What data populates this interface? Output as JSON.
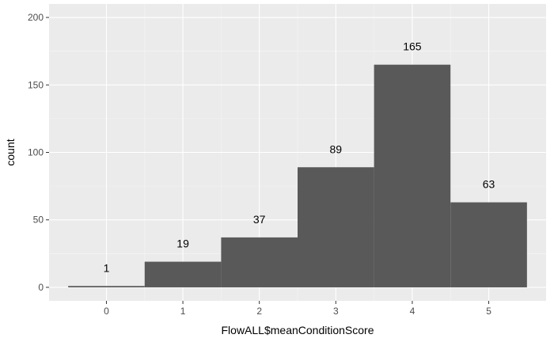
{
  "chart_data": {
    "type": "bar",
    "subtype": "histogram",
    "title": "",
    "xlabel": "FlowALL$meanConditionScore",
    "ylabel": "count",
    "x": [
      0,
      1,
      2,
      3,
      4,
      5
    ],
    "values": [
      1,
      19,
      37,
      89,
      165,
      63
    ],
    "data_labels": [
      "1",
      "19",
      "37",
      "89",
      "165",
      "63"
    ],
    "bin_width": 1,
    "xlim": [
      -0.75,
      5.75
    ],
    "ylim": [
      -10,
      210
    ],
    "x_ticks": [
      0,
      1,
      2,
      3,
      4,
      5
    ],
    "x_tick_labels": [
      "0",
      "1",
      "2",
      "3",
      "4",
      "5"
    ],
    "y_ticks": [
      0,
      50,
      100,
      150,
      200
    ],
    "y_tick_labels": [
      "0",
      "50",
      "100",
      "150",
      "200"
    ],
    "grid": true,
    "legend": "none",
    "colors": {
      "bar": "#595959",
      "panel": "#ebebeb",
      "grid_major": "#ffffff",
      "grid_minor": "#f5f5f5"
    }
  }
}
